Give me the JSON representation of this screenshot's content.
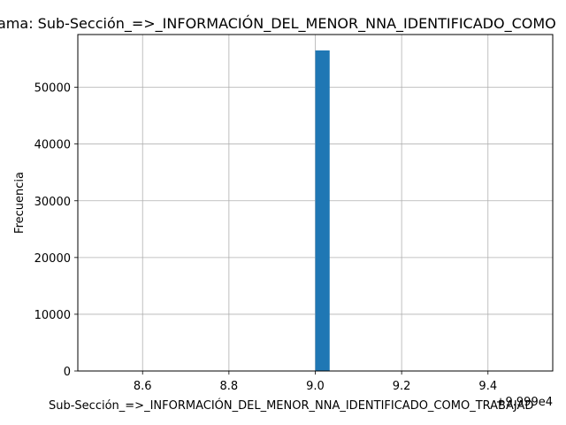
{
  "chart_data": {
    "type": "bar",
    "title": "ama: Sub-Sección_=>_INFORMACIÓN_DEL_MENOR_NNA_IDENTIFICADO_COMO",
    "xlabel": "Sub-Sección_=>_INFORMACIÓN_DEL_MENOR_NNA_IDENTIFICADO_COMO_TRABAJAD",
    "ylabel": "Frecuencia",
    "x_offset_label": "+9.999e4",
    "xlim": [
      8.45,
      9.55
    ],
    "ylim": [
      0,
      59300
    ],
    "x_ticks": [
      8.6,
      8.8,
      9.0,
      9.2,
      9.4
    ],
    "x_tick_labels": [
      "8.6",
      "8.8",
      "9.0",
      "9.2",
      "9.4"
    ],
    "y_ticks": [
      0,
      10000,
      20000,
      30000,
      40000,
      50000
    ],
    "y_tick_labels": [
      "0",
      "10000",
      "20000",
      "30000",
      "40000",
      "50000"
    ],
    "bars": [
      {
        "x0": 9.0,
        "x1": 9.0333,
        "value": 56500
      }
    ],
    "grid": true,
    "bar_color": "#1f77b4"
  }
}
